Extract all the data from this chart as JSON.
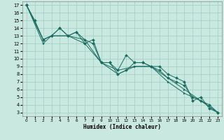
{
  "xlabel": "Humidex (Indice chaleur)",
  "xlim": [
    -0.5,
    23.5
  ],
  "ylim": [
    2.5,
    17.5
  ],
  "xticks": [
    0,
    1,
    2,
    3,
    4,
    5,
    6,
    7,
    8,
    9,
    10,
    11,
    12,
    13,
    14,
    15,
    16,
    17,
    18,
    19,
    20,
    21,
    22,
    23
  ],
  "yticks": [
    3,
    4,
    5,
    6,
    7,
    8,
    9,
    10,
    11,
    12,
    13,
    14,
    15,
    16,
    17
  ],
  "bg_color": "#c8e8e0",
  "grid_color": "#9ecec4",
  "line_color": "#1a6b60",
  "lines": [
    {
      "x": [
        0,
        1,
        2,
        3,
        4,
        5,
        6,
        7,
        8,
        9,
        10,
        11,
        12,
        13,
        14,
        15,
        16,
        17,
        18,
        19,
        20,
        21,
        22,
        23
      ],
      "y": [
        17,
        15,
        12.5,
        13,
        14,
        13,
        13.5,
        12,
        12.5,
        9.5,
        9.5,
        8.5,
        10.5,
        9.5,
        9.5,
        9,
        9,
        8,
        7.5,
        7,
        4.5,
        5,
        3.5,
        3
      ],
      "marker": "D"
    },
    {
      "x": [
        0,
        2,
        3,
        4,
        5,
        6,
        7,
        8,
        9,
        10,
        11,
        12,
        13,
        14,
        15,
        16,
        17,
        18,
        19,
        20,
        21,
        22,
        23
      ],
      "y": [
        17,
        12.5,
        13,
        14,
        13,
        13.5,
        12.5,
        12,
        9.5,
        9.5,
        8,
        8.5,
        9.5,
        9.5,
        9,
        8.5,
        7.5,
        7,
        6.5,
        5,
        4.5,
        4,
        3
      ],
      "marker": "D"
    },
    {
      "x": [
        0,
        2,
        3,
        5,
        7,
        9,
        11,
        13,
        15,
        17,
        19,
        21,
        23
      ],
      "y": [
        17,
        12.5,
        13,
        13,
        12.5,
        9.5,
        8.5,
        9,
        9,
        7.5,
        6,
        4.5,
        3
      ],
      "marker": ">"
    },
    {
      "x": [
        0,
        2,
        3,
        5,
        7,
        9,
        11,
        13,
        15,
        17,
        19,
        21,
        23
      ],
      "y": [
        17,
        12,
        13,
        13,
        12,
        9.5,
        8,
        9,
        9,
        7,
        5.5,
        4.5,
        3
      ],
      "marker": ">"
    }
  ]
}
